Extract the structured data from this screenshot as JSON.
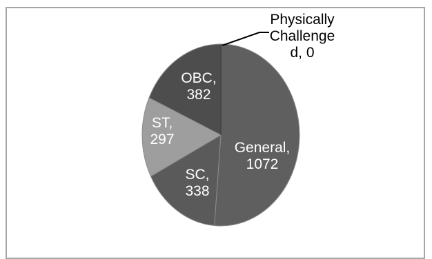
{
  "chart_data": {
    "type": "pie",
    "title": "",
    "slices": [
      {
        "label": "General",
        "value": 1072,
        "color": "#5f5f5f",
        "text_color": "#ffffff",
        "label_lines": [
          "General,",
          "1072"
        ]
      },
      {
        "label": "SC",
        "value": 338,
        "color": "#5a5a5a",
        "text_color": "#ffffff",
        "label_lines": [
          "SC,",
          "338"
        ]
      },
      {
        "label": "ST",
        "value": 297,
        "color": "#9e9e9e",
        "text_color": "#ffffff",
        "label_lines": [
          "ST,",
          "297"
        ]
      },
      {
        "label": "OBC",
        "value": 382,
        "color": "#4d4d4d",
        "text_color": "#ffffff",
        "label_lines": [
          "OBC,",
          "382"
        ]
      },
      {
        "label": "Physically Challenged",
        "value": 0,
        "color": "#3a3a3a",
        "text_color": "#000000",
        "label_lines": [
          "Physically",
          "Challenge",
          "d, 0"
        ]
      }
    ],
    "start_angle": "12 o'clock",
    "direction": "clockwise",
    "legend": "none",
    "data_labels": "category, value"
  }
}
